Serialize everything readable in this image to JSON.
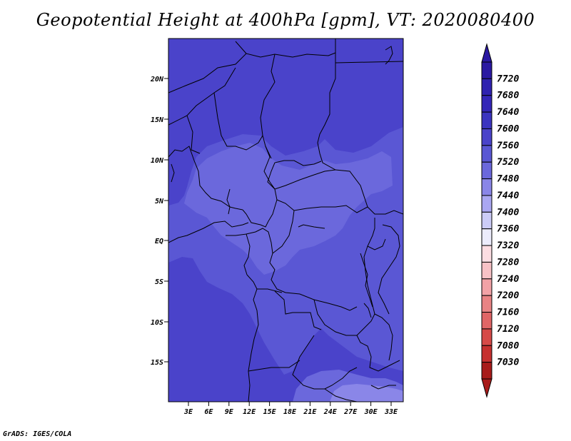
{
  "title": "Geopotential Height at 400hPa [gpm], VT: 2020080400",
  "credit": "GrADS: IGES/COLA",
  "colorbar": {
    "labels": [
      "7720",
      "7680",
      "7640",
      "7600",
      "7560",
      "7520",
      "7480",
      "7440",
      "7400",
      "7360",
      "7320",
      "7280",
      "7240",
      "7200",
      "7160",
      "7120",
      "7080",
      "7030"
    ],
    "colors": [
      "#2a18a2",
      "#2f22b0",
      "#3426b8",
      "#3b34c0",
      "#4a43ca",
      "#5a57d4",
      "#6b68dc",
      "#8a86e8",
      "#aaa7f2",
      "#ccccf7",
      "#ececfc",
      "#fcdde2",
      "#f8c2c6",
      "#f2a2a6",
      "#e98384",
      "#e06566",
      "#d64a48",
      "#c6302f",
      "#a81b1a"
    ],
    "arrow_top": "#2a18a2",
    "arrow_bottom": "#a81b1a"
  },
  "map": {
    "x_tick_labels": [
      "3E",
      "6E",
      "9E",
      "12E",
      "15E",
      "18E",
      "21E",
      "24E",
      "27E",
      "30E",
      "33E"
    ],
    "y_tick_labels": [
      "20N",
      "15N",
      "10N",
      "5N",
      "EQ",
      "5S",
      "10S",
      "15S"
    ],
    "fill_colors": {
      "c7640": "#4a43ca",
      "c7600": "#5a57d4",
      "c7560": "#6b68dc",
      "c7520": "#8a86e8"
    }
  }
}
